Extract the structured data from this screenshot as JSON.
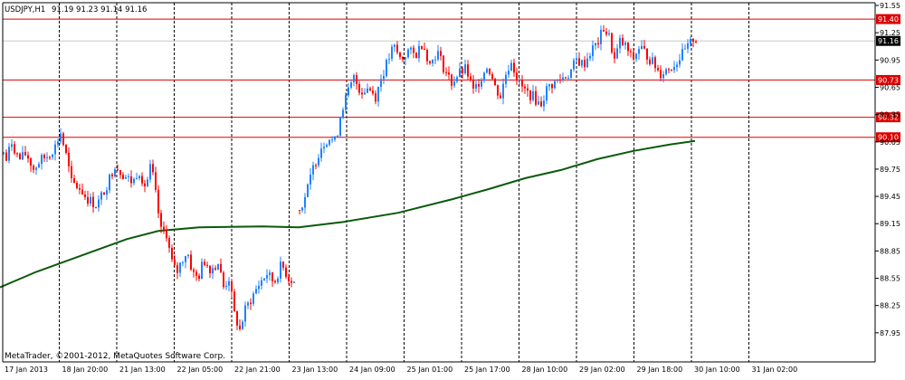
{
  "chart_data": {
    "type": "candlestick",
    "symbol_label": "USDJPY,H1",
    "ohlc_label": "91.19 91.23 91.14 91.16",
    "watermark": "MetaTrader, ©2001-2012, MetaQuotes Software Corp.",
    "ylim": [
      87.63,
      91.58
    ],
    "y_ticks": [
      "91.55",
      "91.25",
      "90.95",
      "90.65",
      "90.35",
      "90.05",
      "89.75",
      "89.45",
      "89.15",
      "88.85",
      "88.55",
      "88.25",
      "87.95"
    ],
    "x_ticks": [
      "17 Jan 2013",
      "18 Jan 20:00",
      "21 Jan 13:00",
      "22 Jan 05:00",
      "22 Jan 21:00",
      "23 Jan 13:00",
      "24 Jan 09:00",
      "25 Jan 01:00",
      "25 Jan 17:00",
      "28 Jan 10:00",
      "29 Jan 02:00",
      "29 Jan 18:00",
      "30 Jan 10:00",
      "31 Jan 02:00"
    ],
    "current_price": {
      "value": 91.16,
      "label": "91.16"
    },
    "horizontal_lines": [
      {
        "value": 91.4,
        "label": "91.40"
      },
      {
        "value": 90.73,
        "label": "90.73"
      },
      {
        "value": 90.32,
        "label": "90.32"
      },
      {
        "value": 90.1,
        "label": "90.10"
      }
    ],
    "moving_average": [
      [
        0,
        88.45
      ],
      [
        40,
        88.62
      ],
      [
        90,
        88.8
      ],
      [
        140,
        88.98
      ],
      [
        175,
        89.07
      ],
      [
        220,
        89.11
      ],
      [
        290,
        89.12
      ],
      [
        330,
        89.11
      ],
      [
        380,
        89.17
      ],
      [
        440,
        89.27
      ],
      [
        500,
        89.42
      ],
      [
        540,
        89.53
      ],
      [
        580,
        89.65
      ],
      [
        620,
        89.74
      ],
      [
        660,
        89.86
      ],
      [
        700,
        89.95
      ],
      [
        740,
        90.02
      ],
      [
        768,
        90.06
      ]
    ],
    "price_path": [
      [
        0,
        90.0
      ],
      [
        6,
        89.85
      ],
      [
        12,
        90.05
      ],
      [
        20,
        89.85
      ],
      [
        28,
        89.92
      ],
      [
        36,
        89.75
      ],
      [
        44,
        89.85
      ],
      [
        52,
        89.9
      ],
      [
        60,
        90.0
      ],
      [
        66,
        90.15
      ],
      [
        72,
        89.9
      ],
      [
        78,
        89.6
      ],
      [
        86,
        89.55
      ],
      [
        96,
        89.42
      ],
      [
        106,
        89.35
      ],
      [
        116,
        89.55
      ],
      [
        126,
        89.8
      ],
      [
        136,
        89.68
      ],
      [
        146,
        89.6
      ],
      [
        152,
        89.75
      ],
      [
        160,
        89.55
      ],
      [
        166,
        89.8
      ],
      [
        172,
        89.4
      ],
      [
        178,
        89.0
      ],
      [
        182,
        89.1
      ],
      [
        188,
        88.75
      ],
      [
        194,
        88.6
      ],
      [
        200,
        88.75
      ],
      [
        206,
        88.85
      ],
      [
        212,
        88.6
      ],
      [
        218,
        88.55
      ],
      [
        224,
        88.75
      ],
      [
        232,
        88.65
      ],
      [
        240,
        88.72
      ],
      [
        246,
        88.45
      ],
      [
        252,
        88.55
      ],
      [
        258,
        88.15
      ],
      [
        264,
        87.98
      ],
      [
        270,
        88.2
      ],
      [
        278,
        88.35
      ],
      [
        286,
        88.5
      ],
      [
        294,
        88.6
      ],
      [
        302,
        88.5
      ],
      [
        310,
        88.7
      ],
      [
        318,
        88.55
      ],
      [
        326,
        88.5
      ],
      [
        330,
        89.3
      ],
      [
        338,
        89.5
      ],
      [
        346,
        89.8
      ],
      [
        354,
        90.0
      ],
      [
        362,
        90.1
      ],
      [
        370,
        90.05
      ],
      [
        376,
        90.4
      ],
      [
        382,
        90.55
      ],
      [
        390,
        90.75
      ],
      [
        398,
        90.6
      ],
      [
        406,
        90.65
      ],
      [
        414,
        90.55
      ],
      [
        420,
        90.75
      ],
      [
        426,
        90.9
      ],
      [
        434,
        91.1
      ],
      [
        442,
        90.95
      ],
      [
        450,
        91.05
      ],
      [
        458,
        91.0
      ],
      [
        466,
        91.15
      ],
      [
        474,
        90.9
      ],
      [
        482,
        91.05
      ],
      [
        490,
        90.85
      ],
      [
        498,
        90.7
      ],
      [
        506,
        90.8
      ],
      [
        514,
        90.85
      ],
      [
        522,
        90.6
      ],
      [
        530,
        90.75
      ],
      [
        538,
        90.9
      ],
      [
        546,
        90.65
      ],
      [
        552,
        90.55
      ],
      [
        558,
        90.8
      ],
      [
        564,
        90.95
      ],
      [
        572,
        90.7
      ],
      [
        580,
        90.6
      ],
      [
        588,
        90.55
      ],
      [
        596,
        90.45
      ],
      [
        604,
        90.65
      ],
      [
        612,
        90.7
      ],
      [
        620,
        90.75
      ],
      [
        628,
        90.8
      ],
      [
        636,
        90.95
      ],
      [
        644,
        90.9
      ],
      [
        652,
        91.05
      ],
      [
        660,
        91.15
      ],
      [
        666,
        91.3
      ],
      [
        672,
        91.2
      ],
      [
        678,
        90.95
      ],
      [
        684,
        91.15
      ],
      [
        690,
        91.1
      ],
      [
        698,
        90.95
      ],
      [
        706,
        91.1
      ],
      [
        714,
        91.0
      ],
      [
        722,
        90.9
      ],
      [
        728,
        90.8
      ],
      [
        736,
        90.85
      ],
      [
        744,
        90.9
      ],
      [
        752,
        91.0
      ],
      [
        760,
        91.1
      ],
      [
        766,
        91.2
      ],
      [
        770,
        91.16
      ]
    ]
  },
  "colors": {
    "background": "#ffffff",
    "axis": "#000000",
    "grid": "#000000",
    "up_candle": "#1e82ff",
    "down_candle": "#ff0000",
    "moving_average": "#0a5a0a",
    "level_line": "#dc0000",
    "level_label_bg": "#dc0000",
    "level_label_text": "#ffffff",
    "price_line": "#c8c8c8"
  }
}
